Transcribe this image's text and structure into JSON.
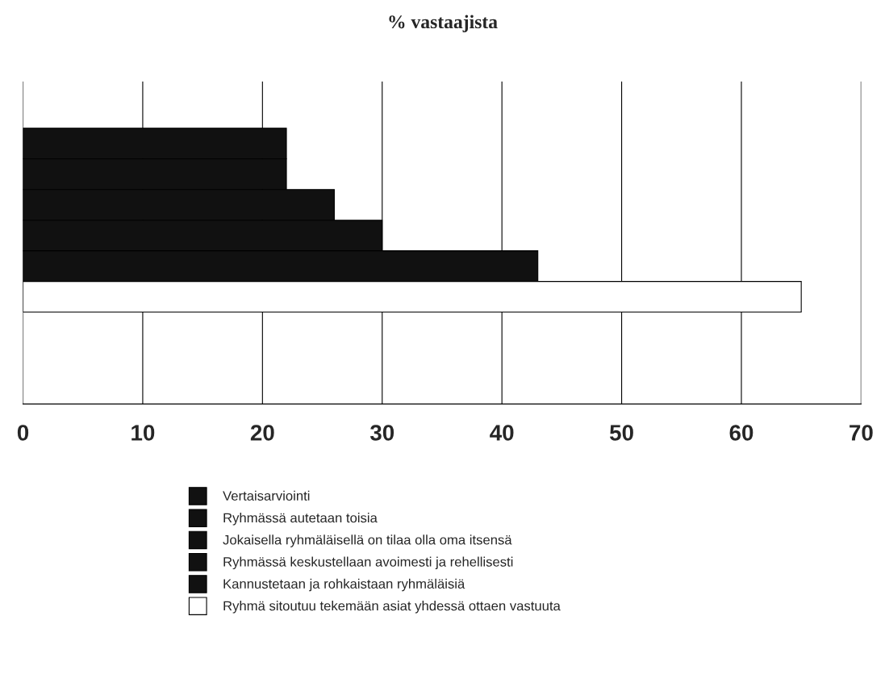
{
  "chart_data": {
    "type": "bar",
    "orientation": "horizontal",
    "title": "% vastaajista",
    "categories": [
      null
    ],
    "series": [
      {
        "name": "Vertaisarviointi",
        "color": "#111111",
        "values": [
          22
        ]
      },
      {
        "name": "Ryhmässä autetaan toisia",
        "color": "#111111",
        "values": [
          22
        ]
      },
      {
        "name": "Jokaisella ryhmäläisellä on tilaa olla oma itsensä",
        "color": "#111111",
        "values": [
          26
        ]
      },
      {
        "name": "Ryhmässä keskustellaan avoimesti ja rehellisesti",
        "color": "#111111",
        "values": [
          30
        ]
      },
      {
        "name": "Kannustetaan ja rohkaistaan ryhmäläisiä",
        "color": "#111111",
        "values": [
          43
        ]
      },
      {
        "name": "Ryhmä sitoutuu tekemään asiat yhdessä ottaen vastuuta",
        "color": "#ffffff",
        "values": [
          65
        ]
      }
    ],
    "xlim": [
      0,
      70
    ],
    "xticks": [
      0,
      10,
      20,
      30,
      40,
      50,
      60,
      70
    ],
    "grid": "x",
    "legend": "bottom"
  }
}
